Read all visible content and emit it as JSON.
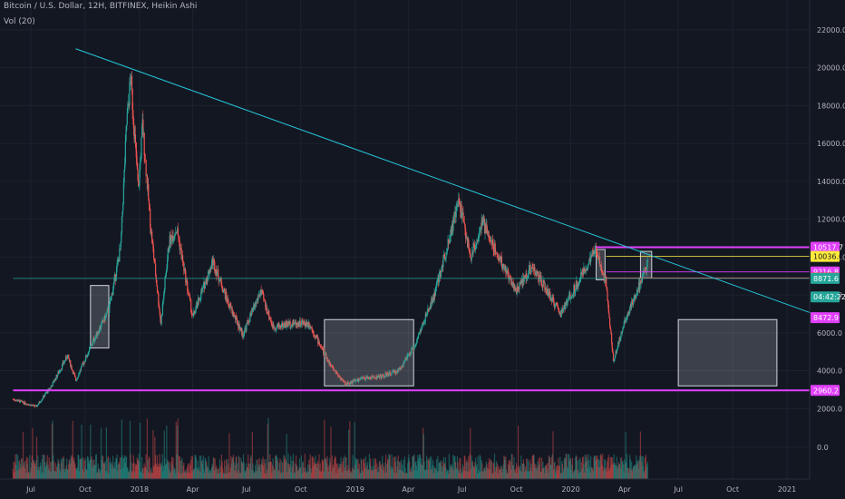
{
  "header": {
    "title": "Bitcoin / U.S. Dollar, 12H, BITFINEX, Heikin Ashi",
    "volume_label": "Vol (20)"
  },
  "colors": {
    "background": "#131722",
    "grid": "#1e222d",
    "up": "#26a69a",
    "down": "#ef5350",
    "trendline": "#26c6da",
    "magenta": "#e040fb",
    "yellow": "#ffeb3b",
    "box": "#d1d4dc"
  },
  "chart_data": {
    "type": "candlestick",
    "price_axis": {
      "ticks": [
        22000,
        20000,
        18000,
        16000,
        14000,
        12000,
        10000,
        8000,
        6000,
        4000,
        2000
      ],
      "tick_labels": [
        "22000.0",
        "20000.0",
        "18000.0",
        "16000.0",
        "14000.0",
        "12000.0",
        "10000.0",
        "8000.0",
        "6000.0",
        "4000.0",
        "2000.0"
      ]
    },
    "volume_axis": {
      "ticks": [
        0
      ],
      "tick_labels": [
        "0.0"
      ]
    },
    "x_axis": {
      "ticks": [
        "2017-07-01",
        "2017-10-01",
        "2018-01-01",
        "2018-04-01",
        "2018-07-01",
        "2018-10-01",
        "2019-01-01",
        "2019-04-01",
        "2019-07-01",
        "2019-10-01",
        "2020-01-01",
        "2020-04-01",
        "2020-07-01",
        "2020-10-01",
        "2021-01-01"
      ],
      "tick_labels": [
        "Jul",
        "Oct",
        "2018",
        "Apr",
        "Jul",
        "Oct",
        "2019",
        "Apr",
        "Jul",
        "Oct",
        "2020",
        "Apr",
        "Jul",
        "Oct",
        "2021"
      ]
    },
    "series_path": [
      [
        "2017-06-01",
        2500
      ],
      [
        "2017-07-10",
        2100
      ],
      [
        "2017-08-05",
        3200
      ],
      [
        "2017-09-01",
        4800
      ],
      [
        "2017-09-15",
        3500
      ],
      [
        "2017-10-15",
        5600
      ],
      [
        "2017-11-10",
        7200
      ],
      [
        "2017-11-30",
        10500
      ],
      [
        "2017-12-10",
        17000
      ],
      [
        "2017-12-17",
        19500
      ],
      [
        "2017-12-30",
        13500
      ],
      [
        "2018-01-06",
        17000
      ],
      [
        "2018-01-20",
        11500
      ],
      [
        "2018-02-06",
        6500
      ],
      [
        "2018-02-20",
        10800
      ],
      [
        "2018-03-05",
        11500
      ],
      [
        "2018-04-01",
        6800
      ],
      [
        "2018-05-05",
        9800
      ],
      [
        "2018-06-01",
        7500
      ],
      [
        "2018-06-25",
        5900
      ],
      [
        "2018-07-25",
        8200
      ],
      [
        "2018-08-15",
        6300
      ],
      [
        "2018-09-15",
        6500
      ],
      [
        "2018-10-15",
        6500
      ],
      [
        "2018-11-20",
        4300
      ],
      [
        "2018-12-15",
        3300
      ],
      [
        "2019-01-15",
        3600
      ],
      [
        "2019-02-15",
        3700
      ],
      [
        "2019-03-15",
        4000
      ],
      [
        "2019-04-10",
        5200
      ],
      [
        "2019-05-15",
        8000
      ],
      [
        "2019-06-26",
        13000
      ],
      [
        "2019-07-15",
        10000
      ],
      [
        "2019-08-05",
        11800
      ],
      [
        "2019-09-01",
        10000
      ],
      [
        "2019-10-01",
        8200
      ],
      [
        "2019-10-27",
        9500
      ],
      [
        "2019-12-15",
        7000
      ],
      [
        "2020-01-15",
        8800
      ],
      [
        "2020-02-13",
        10400
      ],
      [
        "2020-03-01",
        8600
      ],
      [
        "2020-03-13",
        4500
      ],
      [
        "2020-04-01",
        6600
      ],
      [
        "2020-04-30",
        8800
      ],
      [
        "2020-05-10",
        9600
      ]
    ],
    "trendline": {
      "from": [
        "2017-09-15",
        21000
      ],
      "to": [
        "2021-02-15",
        7000
      ]
    },
    "horizontal_levels": [
      {
        "name": "level-10517",
        "price": 10517.7,
        "label": "10517.7",
        "color": "#e040fb",
        "bg": "#e040fb",
        "fg": "#ffffff",
        "from": "2020-02-13"
      },
      {
        "name": "level-10036",
        "price": 10036.0,
        "label": "10036.0",
        "color": "#ffeb3b",
        "bg": "#ffeb3b",
        "fg": "#131722",
        "from": "2020-03-01"
      },
      {
        "name": "level-9216",
        "price": 9216.8,
        "label": "9216.8",
        "color": "#e040fb",
        "bg": "#e040fb",
        "fg": "#ffffff",
        "from": "2020-03-01"
      },
      {
        "name": "level-8900",
        "price": 8900.0,
        "label": "8900.0",
        "color": "#ef5350",
        "bg": "#ef5350",
        "fg": "#ffffff",
        "from": "2020-03-01"
      },
      {
        "name": "level-8871",
        "price": 8871.6,
        "label": "8871.6",
        "color": "#26a69a",
        "bg": "#26a69a",
        "fg": "#ffffff",
        "from": "2017-06-01"
      },
      {
        "name": "level-2960",
        "price": 2960.2,
        "label": "2960.2",
        "color": "#e040fb",
        "bg": "#e040fb",
        "fg": "#ffffff",
        "from": "2017-06-01"
      }
    ],
    "badges": [
      {
        "name": "countdown-badge",
        "label": "04:42:22",
        "bg": "#26a69a",
        "fg": "#ffffff",
        "price": 7900
      },
      {
        "name": "level-8472-badge",
        "label": "8472.9",
        "bg": "#e040fb",
        "fg": "#ffffff",
        "price": 6800
      }
    ],
    "boxes": [
      {
        "name": "box-2017",
        "from": "2017-10-10",
        "to": "2017-11-10",
        "top": 8500,
        "bottom": 5200
      },
      {
        "name": "box-2018-2019",
        "from": "2018-11-10",
        "to": "2019-04-10",
        "top": 6700,
        "bottom": 3200
      },
      {
        "name": "box-2020-a",
        "from": "2020-02-13",
        "to": "2020-02-28",
        "top": 10400,
        "bottom": 8800
      },
      {
        "name": "box-2020-b",
        "from": "2020-04-28",
        "to": "2020-05-17",
        "top": 10300,
        "bottom": 8900
      },
      {
        "name": "box-2020-projection",
        "from": "2020-07-01",
        "to": "2020-12-15",
        "top": 6700,
        "bottom": 3200
      }
    ]
  }
}
